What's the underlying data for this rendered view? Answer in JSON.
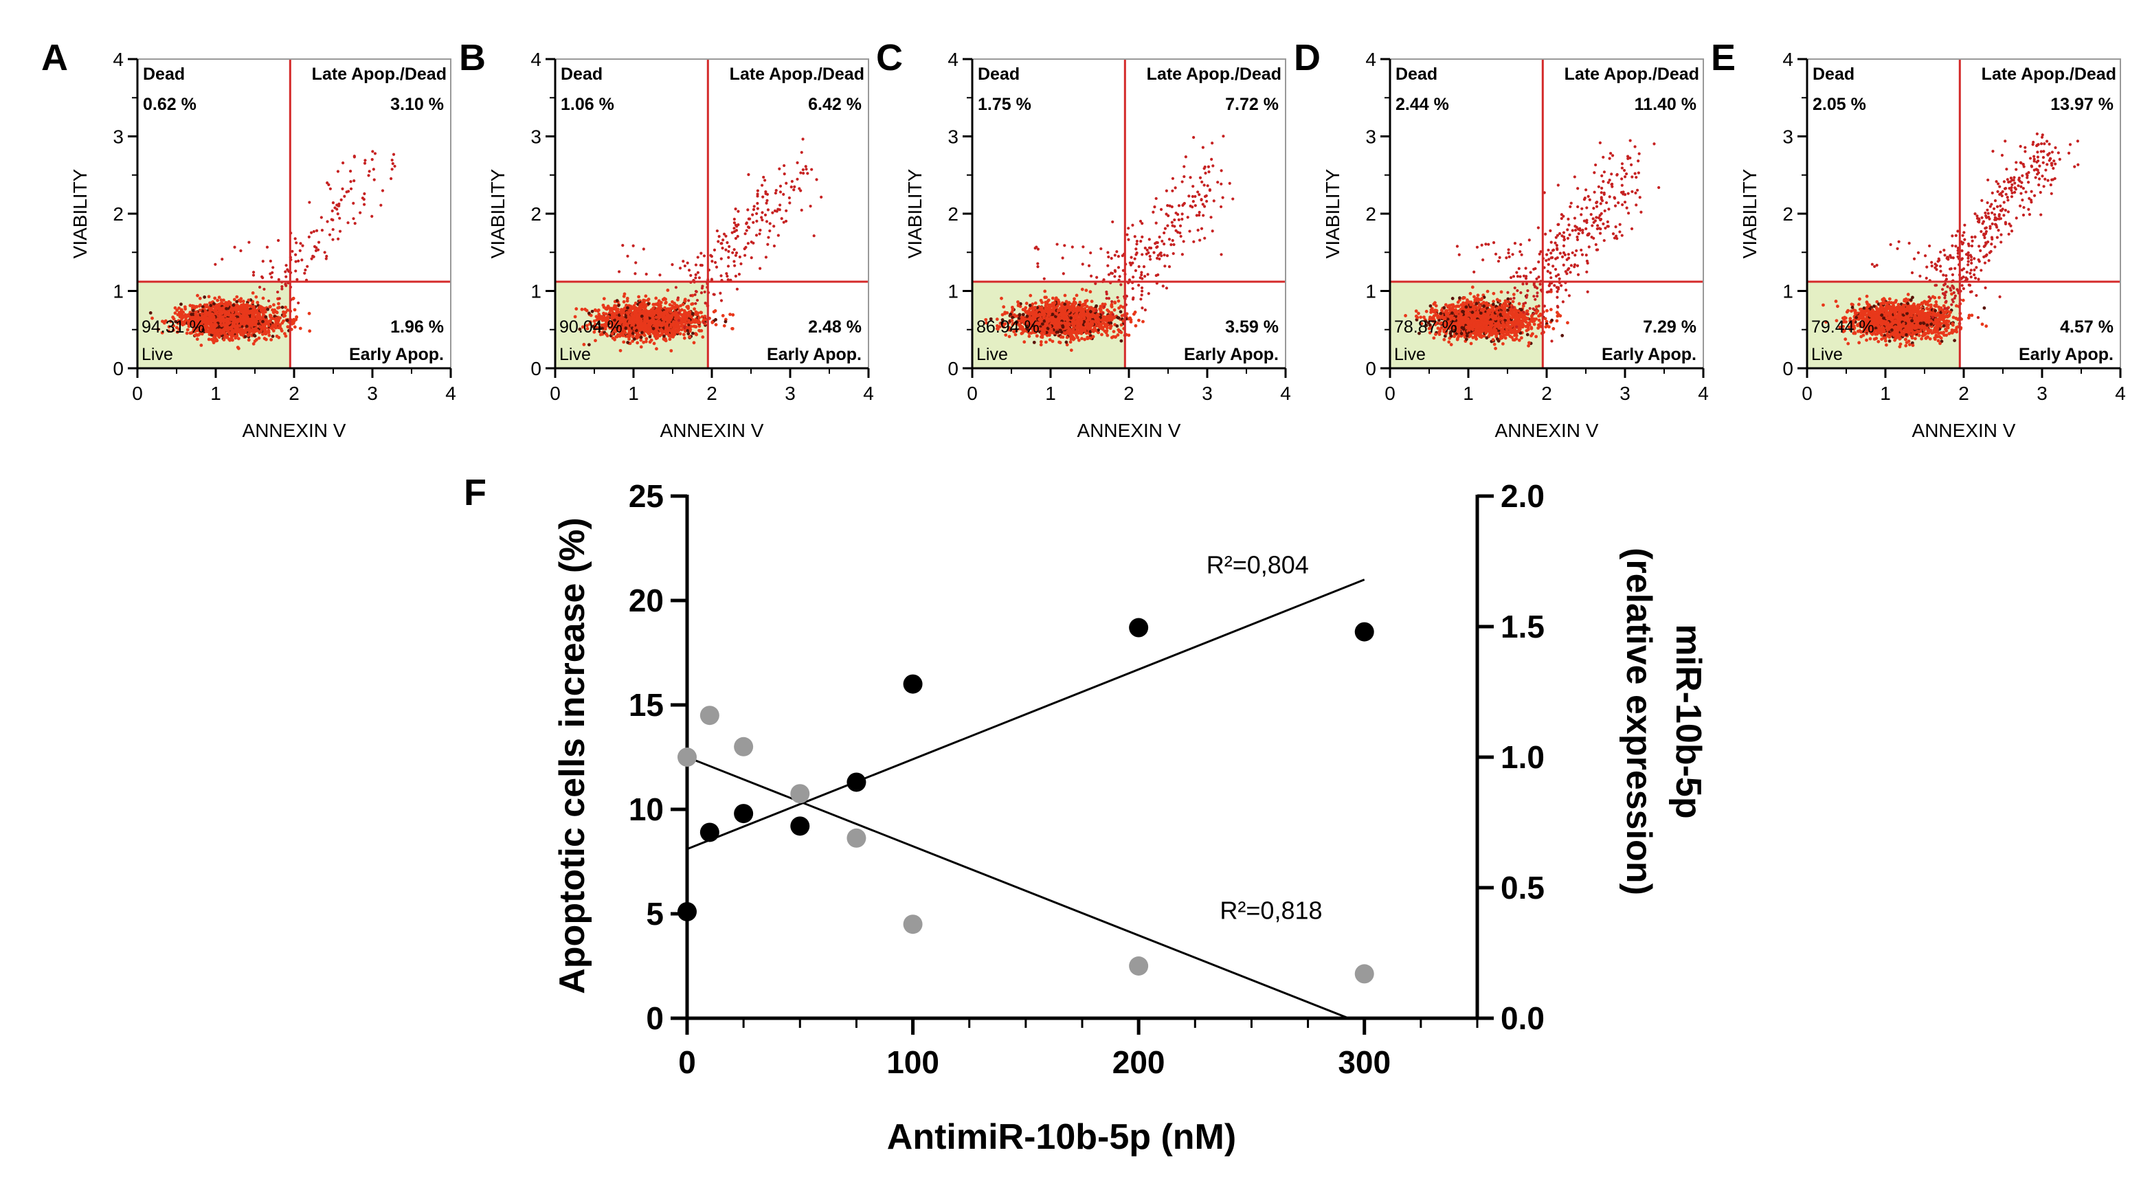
{
  "figure": {
    "panel_f_letter": "F"
  },
  "chart_data": [
    {
      "panel": "A",
      "type": "scatter",
      "title": "",
      "xlabel": "ANNEXIN V",
      "ylabel": "VIABILITY",
      "xlim": [
        0,
        4
      ],
      "ylim": [
        0,
        4
      ],
      "xticks": [
        "0",
        "1",
        "2",
        "3",
        "4"
      ],
      "yticks": [
        "0",
        "1",
        "2",
        "3",
        "4"
      ],
      "gate": {
        "x": 1.95,
        "y": 1.12
      },
      "quadrants": {
        "dead_label": "Dead",
        "dead_value": "0.62 %",
        "late_label": "Late Apop./Dead",
        "late_value": "3.10 %",
        "early_label": "Early Apop.",
        "early_value": "1.96 %",
        "live_label": "Live",
        "live_value": "94.31 %"
      },
      "late_cluster": {
        "x": 2.55,
        "y": 2.1,
        "spread": 0.3
      }
    },
    {
      "panel": "B",
      "type": "scatter",
      "title": "",
      "xlabel": "ANNEXIN V",
      "ylabel": "VIABILITY",
      "xlim": [
        0,
        4
      ],
      "ylim": [
        0,
        4
      ],
      "xticks": [
        "0",
        "1",
        "2",
        "3",
        "4"
      ],
      "yticks": [
        "0",
        "1",
        "2",
        "3",
        "4"
      ],
      "gate": {
        "x": 1.95,
        "y": 1.12
      },
      "quadrants": {
        "dead_label": "Dead",
        "dead_value": "1.06 %",
        "late_label": "Late Apop./Dead",
        "late_value": "6.42 %",
        "early_label": "Early Apop.",
        "early_value": "2.48 %",
        "live_label": "Live",
        "live_value": "90.04 %"
      },
      "late_cluster": {
        "x": 2.45,
        "y": 1.9,
        "spread": 0.4
      }
    },
    {
      "panel": "C",
      "type": "scatter",
      "title": "",
      "xlabel": "ANNEXIN V",
      "ylabel": "VIABILITY",
      "xlim": [
        0,
        4
      ],
      "ylim": [
        0,
        4
      ],
      "xticks": [
        "0",
        "1",
        "2",
        "3",
        "4"
      ],
      "yticks": [
        "0",
        "1",
        "2",
        "3",
        "4"
      ],
      "gate": {
        "x": 1.95,
        "y": 1.12
      },
      "quadrants": {
        "dead_label": "Dead",
        "dead_value": "1.75 %",
        "late_label": "Late Apop./Dead",
        "late_value": "7.72 %",
        "early_label": "Early Apop.",
        "early_value": "3.59 %",
        "live_label": "Live",
        "live_value": "86.94 %"
      },
      "late_cluster": {
        "x": 2.45,
        "y": 1.9,
        "spread": 0.45
      }
    },
    {
      "panel": "D",
      "type": "scatter",
      "title": "",
      "xlabel": "ANNEXIN V",
      "ylabel": "VIABILITY",
      "xlim": [
        0,
        4
      ],
      "ylim": [
        0,
        4
      ],
      "xticks": [
        "0",
        "1",
        "2",
        "3",
        "4"
      ],
      "yticks": [
        "0",
        "1",
        "2",
        "3",
        "4"
      ],
      "gate": {
        "x": 1.95,
        "y": 1.12
      },
      "quadrants": {
        "dead_label": "Dead",
        "dead_value": "2.44 %",
        "late_label": "Late Apop./Dead",
        "late_value": "11.40 %",
        "early_label": "Early Apop.",
        "early_value": "7.29 %",
        "live_label": "Live",
        "live_value": "78.87 %"
      },
      "late_cluster": {
        "x": 2.5,
        "y": 1.95,
        "spread": 0.5
      }
    },
    {
      "panel": "E",
      "type": "scatter",
      "title": "",
      "xlabel": "ANNEXIN V",
      "ylabel": "VIABILITY",
      "xlim": [
        0,
        4
      ],
      "ylim": [
        0,
        4
      ],
      "xticks": [
        "0",
        "1",
        "2",
        "3",
        "4"
      ],
      "yticks": [
        "0",
        "1",
        "2",
        "3",
        "4"
      ],
      "gate": {
        "x": 1.95,
        "y": 1.12
      },
      "quadrants": {
        "dead_label": "Dead",
        "dead_value": "2.05 %",
        "late_label": "Late Apop./Dead",
        "late_value": "13.97 %",
        "early_label": "Early Apop.",
        "early_value": "4.57 %",
        "live_label": "Live",
        "live_value": "79.44 %"
      },
      "late_cluster": {
        "x": 2.55,
        "y": 2.3,
        "spread": 0.3
      }
    },
    {
      "panel": "F",
      "type": "scatter",
      "title": "",
      "xlabel": "AntimiR-10b-5p (nM)",
      "ylabel": "Apoptotic cells increase (%)",
      "y2label_line1": "miR-10b-5p",
      "y2label_line2": "(relative expression)",
      "xlim": [
        0,
        350
      ],
      "ylim": [
        0,
        25
      ],
      "y2lim": [
        0,
        2
      ],
      "xticks": [
        "0",
        "100",
        "200",
        "300"
      ],
      "yticks": [
        "0",
        "5",
        "10",
        "15",
        "20",
        "25"
      ],
      "y2ticks": [
        "0.0",
        "0.5",
        "1.0",
        "1.5",
        "2.0"
      ],
      "series": [
        {
          "name": "Apoptotic cells increase",
          "axis": "left",
          "color": "#000000",
          "x": [
            0,
            10,
            25,
            50,
            75,
            100,
            200,
            300
          ],
          "y": [
            5.1,
            8.9,
            9.8,
            9.2,
            11.3,
            16.0,
            18.7,
            18.5
          ],
          "fit": {
            "x0": 0,
            "y0": 8.1,
            "x1": 300,
            "y1": 21.0
          },
          "r2_label": "R²=0,804",
          "r2_at": {
            "x": 230,
            "y": 21.3
          }
        },
        {
          "name": "miR-10b-5p relative expression",
          "axis": "right",
          "color": "#9a9a9a",
          "x": [
            0,
            10,
            25,
            50,
            75,
            100,
            200,
            300
          ],
          "y": [
            1.0,
            1.16,
            1.04,
            0.86,
            0.69,
            0.36,
            0.2,
            0.17
          ],
          "fit": {
            "x0": 0,
            "y0": 1.0,
            "x1": 293,
            "y1": 0.0
          },
          "r2_label": "R²=0,818",
          "r2_at": {
            "x": 236,
            "y": 0.38
          }
        }
      ]
    }
  ]
}
